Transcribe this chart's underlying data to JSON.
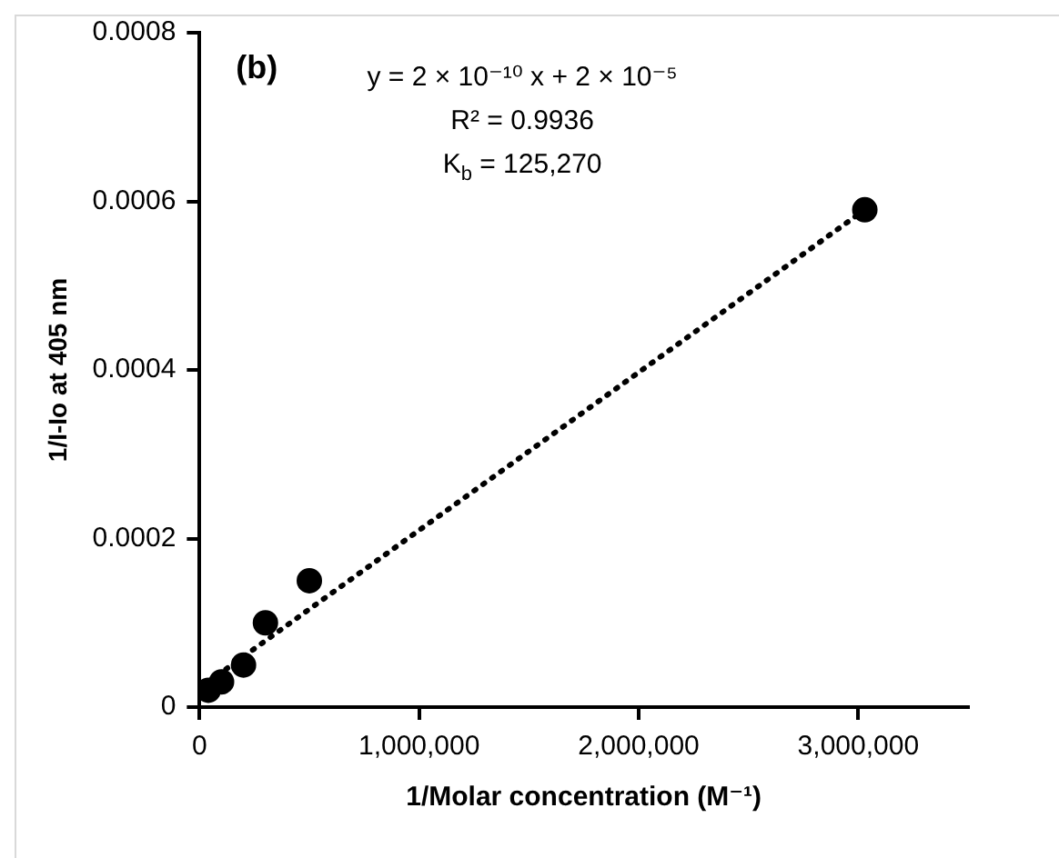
{
  "chart_data": {
    "type": "scatter",
    "xlabel": "1/Molar concentration (M⁻¹)",
    "ylabel": "1/I-Io at 405 nm",
    "annotations": [
      "(b)",
      "y = 2 × 10⁻¹⁰ x + 2 × 10⁻⁵",
      "R² = 0.9936",
      "K$_{b}$ = 125,270"
    ],
    "xlim": [
      0,
      3500000
    ],
    "xticks": [
      0,
      {
        "value": 1000000,
        "label": "1,000,000"
      },
      {
        "value": 2000000,
        "label": "2,000,000"
      },
      {
        "value": 3000000,
        "label": "3,000,000"
      }
    ],
    "ylim": [
      0,
      0.0008
    ],
    "yticks": [
      0,
      0.0002,
      0.0004,
      0.0006,
      0.0008
    ],
    "grid": false,
    "legend": false,
    "marker": "circle",
    "series": [
      {
        "type": "scatter",
        "color": "#000000",
        "x": [
          40000,
          100000,
          200000,
          300000,
          500000,
          3030000
        ],
        "values": [
          2e-05,
          3e-05,
          5e-05,
          0.0001,
          0.00015,
          0.00059
        ]
      },
      {
        "type": "line",
        "color": "#000000",
        "line_style": "dotted",
        "marker": "none",
        "x": [
          40000,
          3030000
        ],
        "values": [
          3e-05,
          0.00059
        ]
      }
    ]
  }
}
